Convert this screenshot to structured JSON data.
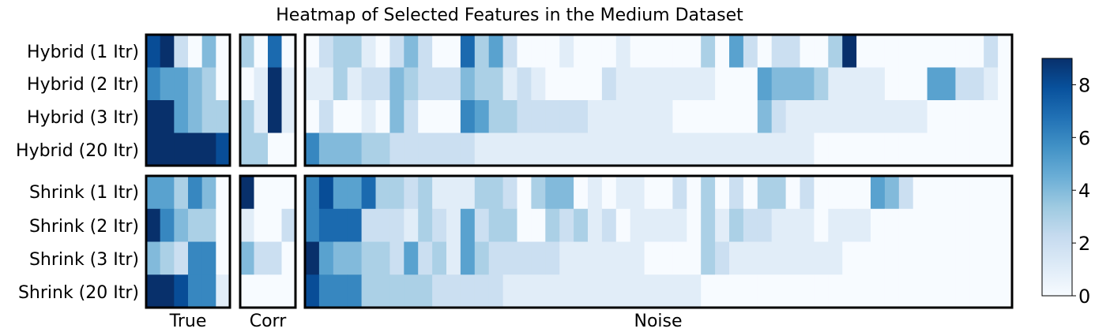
{
  "chart_data": {
    "type": "heatmap",
    "title": "Heatmap of Selected Features in the Medium Dataset",
    "rows": [
      "Hybrid (1 Itr)",
      "Hybrid (2 Itr)",
      "Hybrid (3 Itr)",
      "Hybrid (20 Itr)",
      "Shrink (1 Itr)",
      "Shrink (2 Itr)",
      "Shrink (3 Itr)",
      "Shrink (20 Itr)"
    ],
    "groups": [
      {
        "name": "True",
        "n_cols": 6
      },
      {
        "name": "Corr",
        "n_cols": 4
      },
      {
        "name": "Noise",
        "n_cols": 50
      }
    ],
    "colorbar": {
      "min": 0,
      "max": 9,
      "ticks": [
        0,
        2,
        4,
        6,
        8
      ]
    },
    "values": [
      [
        8,
        9,
        2,
        0,
        4,
        0,
        3,
        0,
        7,
        0,
        0,
        2,
        3,
        3,
        1,
        0,
        2,
        4,
        2,
        0,
        0,
        7,
        3,
        5,
        2,
        0,
        0,
        0,
        1,
        0,
        0,
        0,
        1,
        0,
        0,
        0,
        0,
        0,
        3,
        0,
        5,
        2,
        0,
        2,
        2,
        0,
        0,
        3,
        9,
        0,
        0,
        0,
        0,
        0,
        0,
        0,
        0,
        0,
        2,
        0
      ],
      [
        6,
        5,
        5,
        4,
        3,
        0,
        0,
        1,
        9,
        1,
        1,
        1,
        3,
        1,
        2,
        2,
        4,
        3,
        2,
        2,
        2,
        4,
        3,
        3,
        1,
        2,
        1,
        0,
        0,
        0,
        0,
        2,
        1,
        1,
        1,
        1,
        1,
        1,
        1,
        0,
        0,
        0,
        5,
        4,
        4,
        4,
        3,
        1,
        1,
        1,
        1,
        0,
        0,
        0,
        5,
        5,
        2,
        2,
        1,
        0
      ],
      [
        9,
        9,
        5,
        4,
        3,
        3,
        3,
        1,
        9,
        1,
        0,
        2,
        0,
        0,
        1,
        0,
        4,
        2,
        0,
        0,
        0,
        6,
        5,
        3,
        3,
        2,
        2,
        2,
        2,
        2,
        1,
        1,
        1,
        1,
        1,
        1,
        0,
        0,
        0,
        0,
        0,
        0,
        4,
        2,
        1,
        1,
        1,
        1,
        1,
        1,
        1,
        1,
        1,
        1,
        0,
        0,
        0,
        0,
        0,
        0
      ],
      [
        9,
        9,
        9,
        9,
        9,
        8,
        3,
        3,
        0,
        0,
        6,
        4,
        4,
        4,
        3,
        3,
        2,
        2,
        2,
        2,
        2,
        2,
        1,
        1,
        1,
        1,
        1,
        1,
        1,
        1,
        1,
        1,
        1,
        1,
        1,
        1,
        1,
        1,
        1,
        1,
        1,
        1,
        1,
        1,
        1,
        1,
        0,
        0,
        0,
        0,
        0,
        0,
        0,
        0,
        0,
        0,
        0,
        0,
        0,
        0
      ],
      [
        5,
        5,
        3,
        6,
        4,
        0,
        9,
        0,
        0,
        0,
        6,
        8,
        5,
        5,
        7,
        3,
        3,
        2,
        3,
        1,
        1,
        1,
        3,
        3,
        2,
        0,
        3,
        4,
        4,
        0,
        1,
        0,
        1,
        1,
        0,
        0,
        2,
        0,
        3,
        0,
        2,
        0,
        3,
        3,
        0,
        2,
        0,
        0,
        0,
        0,
        5,
        4,
        2,
        0,
        0,
        0,
        0,
        0,
        0,
        0
      ],
      [
        9,
        6,
        4,
        3,
        3,
        0,
        1,
        0,
        0,
        2,
        6,
        7,
        7,
        7,
        2,
        2,
        2,
        1,
        3,
        2,
        1,
        5,
        2,
        3,
        3,
        0,
        0,
        3,
        2,
        3,
        1,
        2,
        0,
        1,
        1,
        1,
        1,
        0,
        3,
        1,
        3,
        2,
        2,
        1,
        1,
        1,
        0,
        1,
        1,
        1,
        0,
        0,
        0,
        0,
        0,
        0,
        0,
        0,
        0,
        0
      ],
      [
        4,
        3,
        2,
        6,
        6,
        0,
        4,
        2,
        2,
        0,
        9,
        5,
        4,
        4,
        3,
        3,
        2,
        5,
        2,
        3,
        1,
        5,
        3,
        2,
        2,
        2,
        2,
        2,
        1,
        1,
        1,
        1,
        1,
        1,
        0,
        0,
        0,
        0,
        3,
        2,
        1,
        1,
        1,
        1,
        1,
        1,
        1,
        1,
        0,
        0,
        0,
        0,
        0,
        0,
        0,
        0,
        0,
        0,
        0,
        0
      ],
      [
        9,
        9,
        8,
        6,
        6,
        1,
        0,
        0,
        0,
        0,
        8,
        6,
        6,
        6,
        3,
        3,
        3,
        3,
        3,
        2,
        2,
        2,
        2,
        2,
        1,
        1,
        1,
        1,
        1,
        1,
        1,
        1,
        1,
        1,
        1,
        1,
        1,
        1,
        0,
        0,
        0,
        0,
        0,
        0,
        0,
        0,
        0,
        0,
        0,
        0,
        0,
        0,
        0,
        0,
        0,
        0,
        0,
        0,
        0,
        0
      ]
    ]
  }
}
